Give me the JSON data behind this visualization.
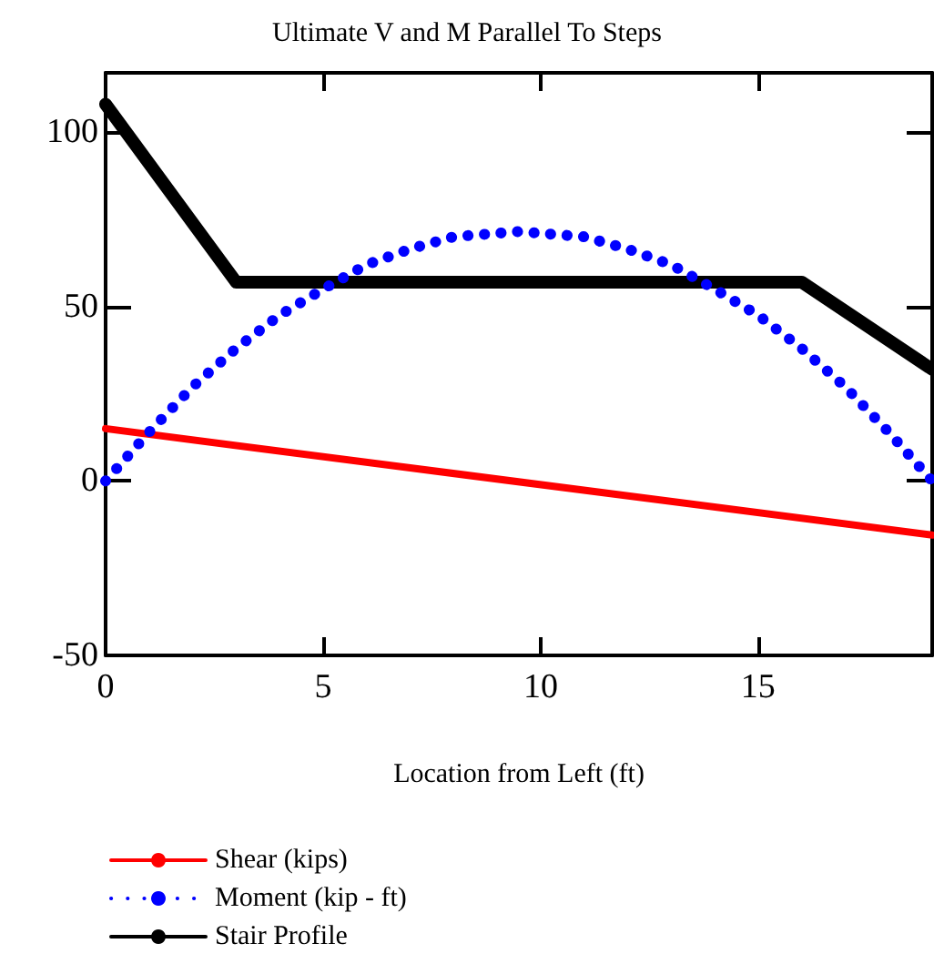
{
  "chart_data": {
    "type": "line",
    "title": "Ultimate V and M Parallel To Steps",
    "xlabel": "Location from Left (ft)",
    "xlim": [
      0,
      19
    ],
    "xticks": [
      0,
      5,
      10,
      15
    ],
    "ylim": [
      -50,
      117
    ],
    "yticks": [
      -50,
      0,
      50,
      100
    ],
    "grid": false,
    "legend": "bottom",
    "marker": "none",
    "series": [
      {
        "name": "Shear (kips)",
        "color": "#ff0000",
        "line_style": "solid",
        "x": [
          0,
          19
        ],
        "values": [
          15,
          -15.5
        ]
      },
      {
        "name": "Moment (kip - ft)",
        "color": "#0000ff",
        "line_style": "dotted",
        "x": [
          0,
          1,
          2,
          3,
          4,
          5,
          6,
          7,
          8,
          9,
          9.5,
          10,
          11,
          12,
          13,
          14,
          15,
          16,
          17,
          18,
          19
        ],
        "values": [
          0,
          14,
          27,
          38,
          47.5,
          55,
          62,
          66.5,
          70,
          71,
          71.5,
          71,
          70,
          66.5,
          62,
          55,
          47.5,
          38,
          27,
          14,
          0
        ]
      },
      {
        "name": "Stair Profile",
        "color": "#000000",
        "line_style": "solid",
        "x": [
          0,
          3,
          16,
          19
        ],
        "values": [
          108,
          57,
          57,
          32
        ]
      }
    ]
  }
}
